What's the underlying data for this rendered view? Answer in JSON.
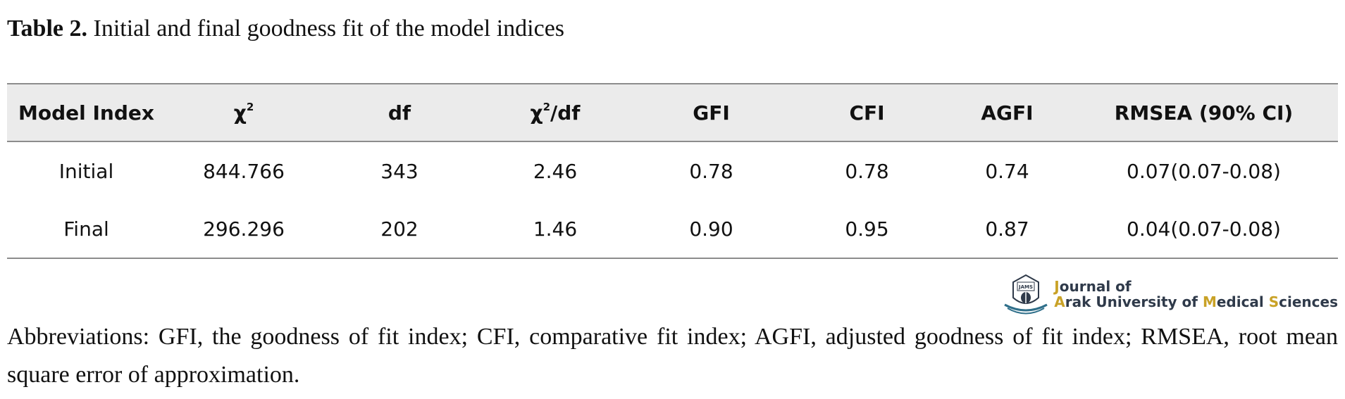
{
  "caption": {
    "label": "Table 2.",
    "text": " Initial and final goodness fit of the model indices"
  },
  "table": {
    "headers": [
      "Model Index",
      "χ",
      "df",
      "χ",
      "/df",
      "GFI",
      "CFI",
      "AGFI",
      "RMSEA (90% CI)"
    ],
    "superscript": "2",
    "rows": [
      [
        "Initial",
        "844.766",
        "343",
        "2.46",
        "0.78",
        "0.78",
        "0.74",
        "0.07(0.07-0.08)"
      ],
      [
        "Final",
        "296.296",
        "202",
        "1.46",
        "0.90",
        "0.95",
        "0.87",
        "0.04(0.07-0.08)"
      ]
    ]
  },
  "logo": {
    "emblem_text": "JAMS",
    "line1_initial": "J",
    "line1_rest": "ournal of",
    "line2": [
      "A",
      "rak University of ",
      "M",
      "edical ",
      "S",
      "ciences"
    ],
    "accent_color": "#c9a227",
    "text_color": "#2f3a4a"
  },
  "footnote": "Abbreviations: GFI, the goodness of fit index; CFI, comparative fit index; AGFI, adjusted goodness of fit index; RMSEA, root mean square error of approximation."
}
